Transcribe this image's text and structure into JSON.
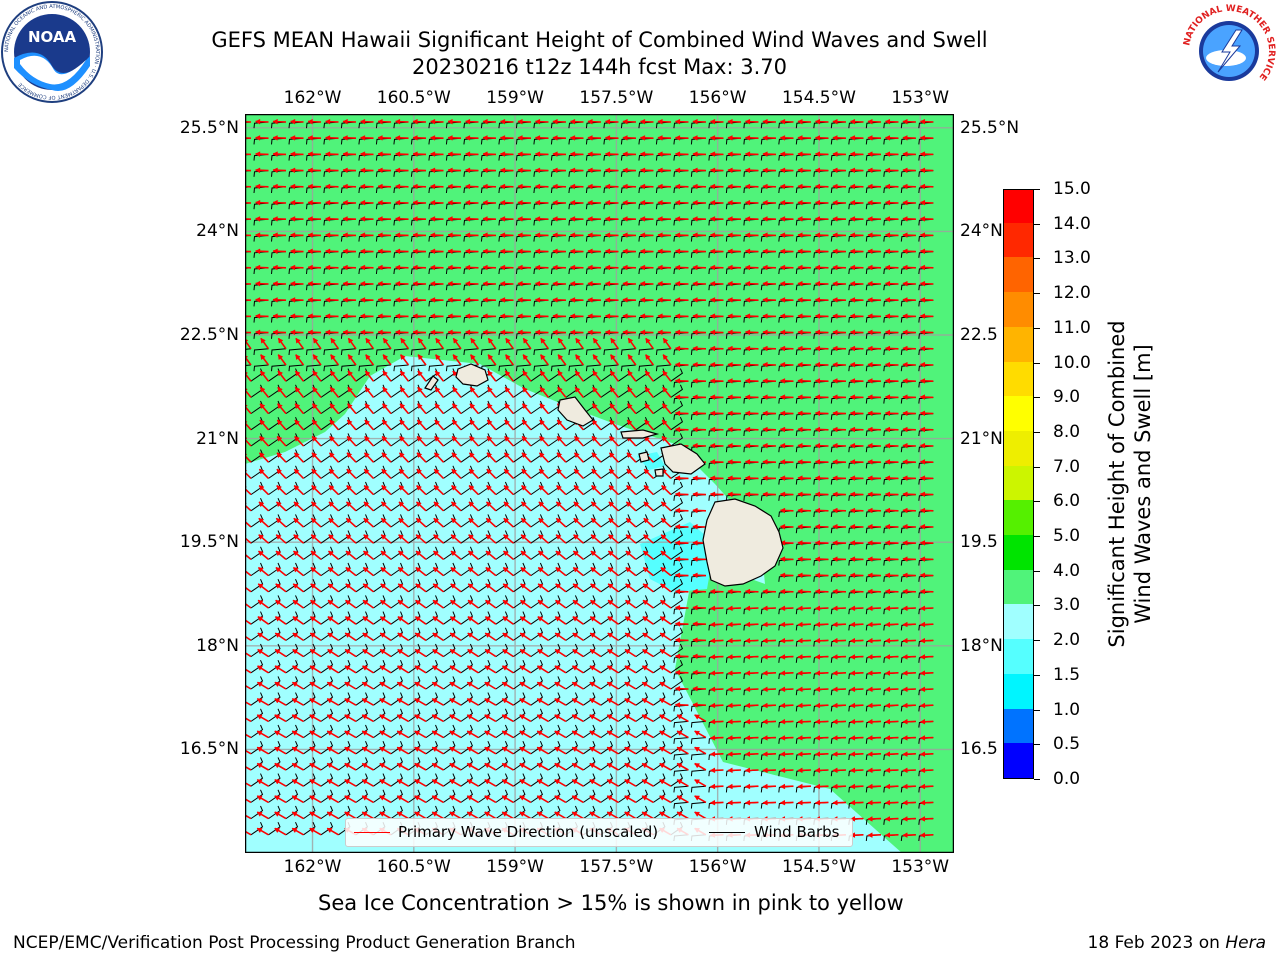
{
  "header": {
    "title_line1": "GEFS MEAN Hawaii Significant Height of Combined Wind Waves and Swell",
    "title_line2": "20230216 t12z 144h fcst   Max: 3.70"
  },
  "logos": {
    "noaa_text": "NOAA",
    "noaa_ring_text": "NATIONAL OCEANIC AND ATMOSPHERIC ADMINISTRATION · U.S. DEPARTMENT OF COMMERCE",
    "nws_ring_text": "NATIONAL WEATHER SERVICE"
  },
  "map": {
    "lon_ticks": [
      "162°W",
      "160.5°W",
      "159°W",
      "157.5°W",
      "156°W",
      "154.5°W",
      "153°W"
    ],
    "lat_ticks": [
      "25.5°N",
      "24°N",
      "22.5°N",
      "21°N",
      "19.5°N",
      "18°N",
      "16.5°N"
    ],
    "lat_ticks_right": [
      "25.5°N",
      "24°N",
      "22.5",
      "21°N",
      "19.5",
      "18°N",
      "16.5"
    ],
    "lon_values": [
      -162,
      -160.5,
      -159,
      -157.5,
      -156,
      -154.5,
      -153
    ],
    "lat_values": [
      25.5,
      24,
      22.5,
      21,
      19.5,
      18,
      16.5
    ],
    "extent": {
      "lon_min": -163.0,
      "lon_max": -152.5,
      "lat_min": 15.0,
      "lat_max": 25.7
    },
    "colors": {
      "land": "#efebdf",
      "coast": "#000000",
      "grid": "#a0a0a0",
      "wave_arrow": "#ff0000",
      "barb": "#000000"
    }
  },
  "legend": {
    "wave_label": "Primary Wave Direction (unscaled)",
    "barb_label": "Wind Barbs",
    "wave_color": "#ff0000",
    "barb_color": "#000000"
  },
  "colorbar": {
    "title_line1": "Significant Height of Combined",
    "title_line2": "Wind Waves and Swell [m]",
    "tick_labels": [
      "0.0",
      "0.5",
      "1.0",
      "1.5",
      "2.0",
      "3.0",
      "4.0",
      "5.0",
      "6.0",
      "7.0",
      "8.0",
      "9.0",
      "10.0",
      "11.0",
      "12.0",
      "13.0",
      "14.0",
      "15.0"
    ],
    "colors": [
      "#0000ff",
      "#0073ff",
      "#00f5ff",
      "#55ffff",
      "#a0ffff",
      "#50f37a",
      "#00e400",
      "#55f000",
      "#ccf500",
      "#eeee00",
      "#ffff00",
      "#ffdc00",
      "#ffb400",
      "#ff8c00",
      "#ff6400",
      "#ff2800",
      "#ff0000"
    ]
  },
  "footer": {
    "note": "Sea Ice Concentration > 15% is shown in pink to yellow",
    "credit": "NCEP/EMC/Verification Post Processing Product Generation Branch",
    "date_prefix": "18 Feb 2023 on ",
    "machine": "Hera"
  },
  "chart_data": {
    "type": "heatmap",
    "title": "GEFS MEAN Hawaii Significant Height of Combined Wind Waves and Swell",
    "subtitle": "20230216 t12z 144h fcst   Max: 3.70",
    "variable": "Significant Height of Combined Wind Waves and Swell [m]",
    "max_value": 3.7,
    "colorbar_range": [
      0.0,
      15.0
    ],
    "colorbar_levels": [
      0.0,
      0.5,
      1.0,
      1.5,
      2.0,
      3.0,
      4.0,
      5.0,
      6.0,
      7.0,
      8.0,
      9.0,
      10.0,
      11.0,
      12.0,
      13.0,
      14.0,
      15.0
    ],
    "xlabel": "",
    "ylabel": "",
    "xlim": [
      -163.0,
      -152.5
    ],
    "ylim": [
      15.0,
      25.7
    ],
    "grid": true,
    "legend_placement": "bottom-center",
    "regions": [
      {
        "name": "northeast",
        "range_m": [
          3.0,
          4.0
        ]
      },
      {
        "name": "southwest_and_lee_of_islands",
        "range_m": [
          2.0,
          3.0
        ]
      },
      {
        "name": "lee_of_big_island",
        "range_m": [
          1.5,
          2.0
        ]
      }
    ]
  }
}
